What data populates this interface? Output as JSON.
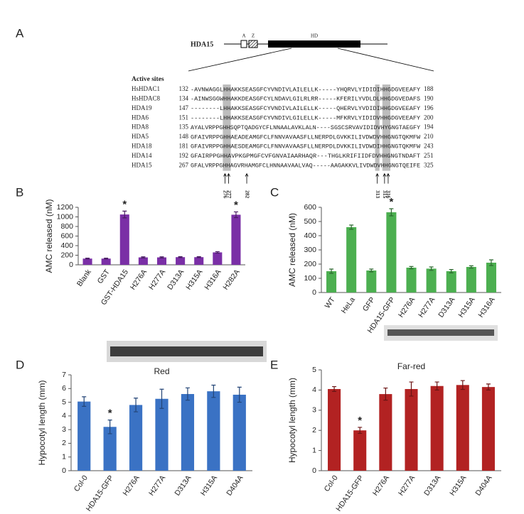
{
  "panel_a": {
    "label": "A",
    "gene": "HDA15",
    "domains": [
      "A",
      "Z",
      "HD"
    ],
    "active_sites_title": "Active sites",
    "alignment": [
      {
        "name": "HsHDAC1",
        "start": 132,
        "sequence": "-AVNWAGGLHHAKKSEASGFCYVNDIVLAILELLK-----YHQRVLYIDIDIHHGDGVEEAFY",
        "end": 188
      },
      {
        "name": "HsHDAC8",
        "start": 134,
        "sequence": "-AINWSGGWHHAKKDEASGFCYLNDAVLGILRLRR-----KFERILYVDLDLHHGDGVEDAFS",
        "end": 190
      },
      {
        "name": "HDA19",
        "start": 147,
        "sequence": "--------LHHAKKSEASGFCYVNDIVLAILELLK-----QHERVLYVDIDIHHGDGVEEAFY",
        "end": 196
      },
      {
        "name": "HDA6",
        "start": 151,
        "sequence": "--------LHHAKKSEASGFCYVNDIVLGILELLK-----MFKRVLYIDIDVHHGDGVEEAFY",
        "end": 200
      },
      {
        "name": "HDA8",
        "start": 135,
        "sequence": "AYALVRPPGHHSQPTQADGYCFLNNAALAVKLALN----SGSCSRVAVIDIDVHYGNGTAEGFY",
        "end": 194
      },
      {
        "name": "HDA5",
        "start": 148,
        "sequence": "GFAIVRPPGHHAEADEAMGFCLFNNVAVAASFLLNERPDLGVKKILIVDWDVHHGNGTQKMFW",
        "end": 210
      },
      {
        "name": "HDA18",
        "start": 181,
        "sequence": "GFAIVRPPGHHAESDEAMGFCLFNNVAVAASFLLNERPDLDVKKILIVDWDIHHGNGTQKMFW",
        "end": 243
      },
      {
        "name": "HDA14",
        "start": 192,
        "sequence": "GFAIRPPGHHAVPKGPMGFCVFGNVAIAARHAQR---THGLKRIFIIDFDVHHGNGTNDAFT",
        "end": 251
      },
      {
        "name": "HDA15",
        "start": 267,
        "sequence": "GFALVRPPGHHAGVRHAMGFCLHNNAAVAALVAQ-----AAGAKKVLIVDWDVHHGNGTQEIFE",
        "end": 325
      }
    ],
    "positions": [
      "276",
      "277",
      "282",
      "313",
      "315",
      "316"
    ]
  },
  "chart_data": [
    {
      "type": "bar",
      "label": "B",
      "y_label": "AMC released (nM)",
      "color": "#7a2fa6",
      "categories": [
        "Blank",
        "GST",
        "GST-HDA15",
        "H276A",
        "H277A",
        "D313A",
        "H315A",
        "H316A",
        "H282A"
      ],
      "values": [
        130,
        130,
        1050,
        155,
        155,
        160,
        160,
        260,
        1045
      ],
      "errors": [
        10,
        10,
        70,
        12,
        12,
        10,
        10,
        15,
        60
      ],
      "ylim": [
        0,
        1200
      ],
      "yticks": [
        0,
        200,
        400,
        600,
        800,
        1000,
        1200
      ],
      "annotations": [
        {
          "category": "GST-HDA15",
          "text": "*"
        },
        {
          "category": "H282A",
          "text": "*"
        }
      ]
    },
    {
      "type": "bar",
      "label": "C",
      "y_label": "AMC released (nM)",
      "color": "#4caf50",
      "categories": [
        "WT",
        "HeLa",
        "GFP",
        "HDA15-GFP",
        "H276A",
        "H277A",
        "D313A",
        "H315A",
        "H316A"
      ],
      "values": [
        150,
        460,
        155,
        565,
        175,
        168,
        150,
        180,
        210
      ],
      "errors": [
        15,
        15,
        10,
        25,
        8,
        12,
        12,
        8,
        20
      ],
      "ylim": [
        0,
        600
      ],
      "yticks": [
        0,
        100,
        200,
        300,
        400,
        500,
        600
      ],
      "annotations": [
        {
          "category": "HDA15-GFP",
          "text": "*"
        }
      ]
    },
    {
      "type": "bar",
      "label": "D",
      "title": "Red",
      "y_label": "Hypocotyl length (mm)",
      "color": "#3a72c4",
      "categories": [
        "Col-0",
        "HDA15-GFP",
        "H276A",
        "H277A",
        "D313A",
        "H315A",
        "D404A"
      ],
      "values": [
        5.05,
        3.2,
        4.8,
        5.25,
        5.6,
        5.8,
        5.55
      ],
      "errors": [
        0.35,
        0.5,
        0.5,
        0.7,
        0.45,
        0.45,
        0.55
      ],
      "ylim": [
        0,
        7
      ],
      "yticks": [
        0,
        1,
        2,
        3,
        4,
        5,
        6,
        7
      ],
      "annotations": [
        {
          "category": "HDA15-GFP",
          "text": "*"
        }
      ]
    },
    {
      "type": "bar",
      "label": "E",
      "title": "Far-red",
      "y_label": "Hypocotyl length (mm)",
      "color": "#b22222",
      "categories": [
        "Col-0",
        "HDA15-GFP",
        "H276A",
        "H277A",
        "D313A",
        "H315A",
        "D404A"
      ],
      "values": [
        4.05,
        2.0,
        3.8,
        4.05,
        4.2,
        4.25,
        4.15
      ],
      "errors": [
        0.12,
        0.15,
        0.3,
        0.35,
        0.2,
        0.22,
        0.15
      ],
      "ylim": [
        0,
        5
      ],
      "yticks": [
        0,
        1,
        2,
        3,
        4,
        5
      ],
      "annotations": [
        {
          "category": "HDA15-GFP",
          "text": "*"
        }
      ]
    }
  ]
}
